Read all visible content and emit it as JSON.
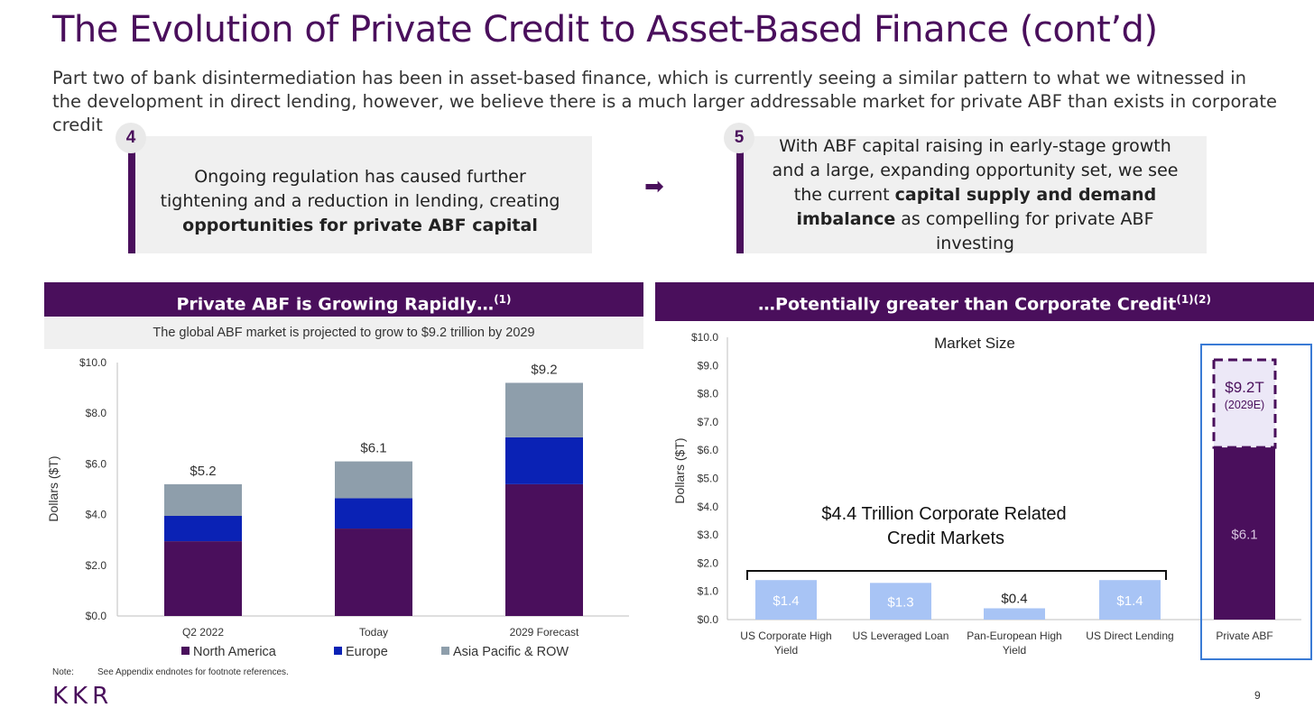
{
  "page": {
    "title": "The Evolution of Private Credit to Asset-Based Finance (cont’d)",
    "subtitle": "Part two of bank disintermediation has been in asset-based finance, which is currently seeing a similar pattern to what we witnessed in the development in direct lending, however, we believe there is a much larger addressable market for private ABF than exists in corporate credit",
    "footnote_label": "Note:",
    "footnote_text": "See Appendix endnotes for footnote references.",
    "logo": "KKR",
    "page_number": "9"
  },
  "callouts": [
    {
      "number": "4",
      "text_before": "Ongoing regulation has caused further tightening and a reduction in lending, creating ",
      "text_bold": "opportunities for private ABF capital",
      "text_after": ""
    },
    {
      "number": "5",
      "text_before": "With ABF capital raising in early-stage growth and a large, expanding opportunity set, we see the current ",
      "text_bold": "capital supply and demand imbalance",
      "text_after": " as compelling for private ABF investing"
    }
  ],
  "arrow_glyph": "➡",
  "colors": {
    "purple": "#4a0f5c",
    "blue": "#0a22b5",
    "grey": "#8e9eab",
    "light_blue": "#a8c4f5",
    "outline_blue": "#3a7bd5"
  },
  "left_panel": {
    "header": "Private ABF is Growing Rapidly…",
    "header_sup": "(1)",
    "band_text": "The global ABF market is projected to grow to $9.2 trillion by 2029"
  },
  "right_panel": {
    "header": "…Potentially greater than Corporate Credit",
    "header_sup": "(1)(2)"
  },
  "chart_data": [
    {
      "type": "bar",
      "stacked": true,
      "categories": [
        "Q2 2022",
        "Today",
        "2029 Forecast"
      ],
      "series": [
        {
          "name": "North America",
          "values": [
            2.95,
            3.45,
            5.2
          ],
          "color": "#4a0f5c"
        },
        {
          "name": "Europe",
          "values": [
            1.0,
            1.2,
            1.85
          ],
          "color": "#0a22b5"
        },
        {
          "name": "Asia Pacific & ROW",
          "values": [
            1.25,
            1.45,
            2.15
          ],
          "color": "#8e9eab"
        }
      ],
      "totals": [
        5.2,
        6.1,
        9.2
      ],
      "total_labels": [
        "$5.2",
        "$6.1",
        "$9.2"
      ],
      "ylabel": "Dollars ($T)",
      "ylim": [
        0,
        10
      ],
      "yticks": [
        "$0.0",
        "$2.0",
        "$4.0",
        "$6.0",
        "$8.0",
        "$10.0"
      ],
      "legend_position": "bottom"
    },
    {
      "type": "bar",
      "title": "Market Size",
      "categories": [
        "US Corporate High Yield",
        "US Leveraged Loan",
        "Pan-European High Yield",
        "US Direct Lending",
        "Private ABF"
      ],
      "category_lines": [
        [
          "US Corporate High",
          "Yield"
        ],
        [
          "US Leveraged Loan"
        ],
        [
          "Pan-European High",
          "Yield"
        ],
        [
          "US Direct Lending"
        ],
        [
          "Private ABF"
        ]
      ],
      "values": [
        1.4,
        1.3,
        0.4,
        1.4,
        6.1
      ],
      "value_labels": [
        "$1.4",
        "$1.3",
        "$0.4",
        "$1.4",
        "$6.1"
      ],
      "projected": {
        "category": "Private ABF",
        "value": 9.2,
        "label": "$9.2T",
        "sublabel": "(2029E)"
      },
      "bracket_label_lines": [
        "$4.4 Trillion Corporate Related",
        "Credit Markets"
      ],
      "ylabel": "Dollars ($T)",
      "ylim": [
        0,
        10
      ],
      "yticks": [
        "$0.0",
        "$1.0",
        "$2.0",
        "$3.0",
        "$4.0",
        "$5.0",
        "$6.0",
        "$7.0",
        "$8.0",
        "$9.0",
        "$10.0"
      ]
    }
  ]
}
